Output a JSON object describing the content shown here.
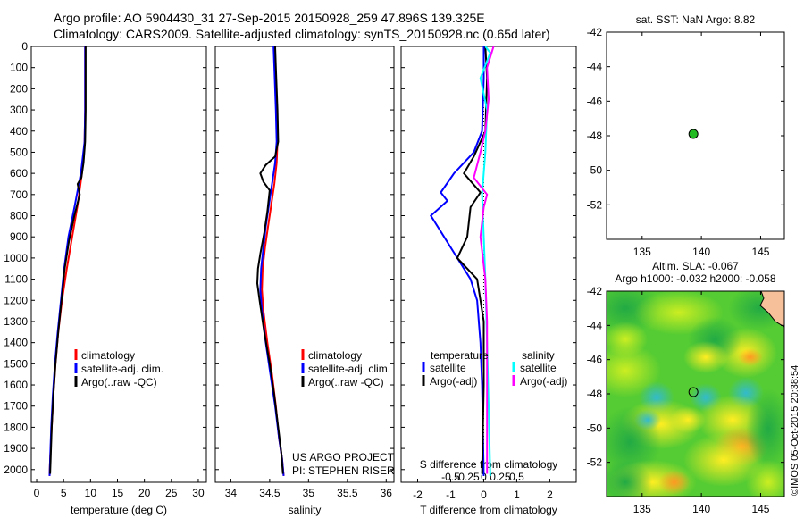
{
  "header": {
    "line1": "Argo profile: AO 5904430_31 27-Sep-2015 20150928_259 47.896S 139.325E",
    "line2": "Climatology: CARS2009. Satellite-adjusted climatology: synTS_20150928.nc (0.65d later)"
  },
  "stamp": "©IMOS 05-Oct-2015 20:38:54",
  "colors": {
    "climatology": "#ff0000",
    "satellite": "#0000ff",
    "argo": "#000000",
    "sal_satellite": "#00ffff",
    "sal_argo": "#ff00ff",
    "float_marker": "#22bb22",
    "land": "#f5c09a"
  },
  "chart_data": [
    {
      "id": "temperature",
      "type": "line",
      "xlabel": "temperature (deg C)",
      "ylabel": "",
      "xlim": [
        -1,
        31.5
      ],
      "ylim": [
        2060,
        0
      ],
      "xticks": [
        0,
        5,
        10,
        15,
        20,
        25,
        30
      ],
      "xtick_labels": [
        "0",
        "5",
        "10",
        "15",
        "20",
        "25",
        "30"
      ],
      "yticks": [
        0,
        100,
        200,
        300,
        400,
        500,
        600,
        700,
        800,
        900,
        1000,
        1100,
        1200,
        1300,
        1400,
        1500,
        1600,
        1700,
        1800,
        1900,
        2000
      ],
      "legend": {
        "position": "lower-center",
        "entries": [
          "climatology",
          "satellite-adj. clim.",
          "Argo(..raw -QC)"
        ]
      },
      "series": [
        {
          "name": "climatology",
          "color": "red",
          "points": [
            [
              9.0,
              0
            ],
            [
              9.0,
              100
            ],
            [
              9.0,
              300
            ],
            [
              8.9,
              450
            ],
            [
              8.4,
              600
            ],
            [
              7.6,
              750
            ],
            [
              6.6,
              900
            ],
            [
              5.6,
              1050
            ],
            [
              4.7,
              1200
            ],
            [
              4.0,
              1350
            ],
            [
              3.5,
              1500
            ],
            [
              3.1,
              1650
            ],
            [
              2.8,
              1800
            ],
            [
              2.5,
              1950
            ],
            [
              2.4,
              2030
            ]
          ]
        },
        {
          "name": "satellite-adj. clim.",
          "color": "blue",
          "points": [
            [
              9.0,
              0
            ],
            [
              9.0,
              100
            ],
            [
              9.0,
              300
            ],
            [
              8.9,
              450
            ],
            [
              8.2,
              600
            ],
            [
              7.1,
              750
            ],
            [
              5.9,
              900
            ],
            [
              5.1,
              1050
            ],
            [
              4.5,
              1200
            ],
            [
              3.9,
              1350
            ],
            [
              3.4,
              1500
            ],
            [
              3.0,
              1650
            ],
            [
              2.7,
              1800
            ],
            [
              2.5,
              1950
            ],
            [
              2.4,
              2030
            ]
          ]
        },
        {
          "name": "Argo(..raw -QC)",
          "color": "black",
          "points": [
            [
              9.1,
              0
            ],
            [
              9.1,
              100
            ],
            [
              9.1,
              300
            ],
            [
              9.0,
              450
            ],
            [
              8.7,
              550
            ],
            [
              8.3,
              620
            ],
            [
              7.6,
              650
            ],
            [
              8.0,
              700
            ],
            [
              7.0,
              800
            ],
            [
              6.0,
              920
            ],
            [
              5.2,
              1050
            ],
            [
              4.6,
              1200
            ],
            [
              4.0,
              1350
            ],
            [
              3.5,
              1500
            ],
            [
              3.1,
              1650
            ],
            [
              2.8,
              1800
            ],
            [
              2.6,
              1950
            ],
            [
              2.5,
              2020
            ]
          ]
        }
      ]
    },
    {
      "id": "salinity",
      "type": "line",
      "xlabel": "salinity",
      "ylabel": "",
      "xlim": [
        33.8,
        36.1
      ],
      "ylim": [
        2060,
        0
      ],
      "xticks": [
        34,
        34.5,
        35,
        35.5,
        36
      ],
      "xtick_labels": [
        "34",
        "34.5",
        "35",
        "35.5",
        "36"
      ],
      "legend": {
        "position": "lower-right",
        "entries": [
          "climatology",
          "satellite-adj. clim.",
          "Argo(..raw -QC)"
        ]
      },
      "annotation": [
        "US ARGO PROJECT",
        "PI: STEPHEN RISER"
      ],
      "series": [
        {
          "name": "climatology",
          "color": "red",
          "points": [
            [
              34.56,
              0
            ],
            [
              34.57,
              100
            ],
            [
              34.59,
              300
            ],
            [
              34.6,
              450
            ],
            [
              34.59,
              550
            ],
            [
              34.56,
              650
            ],
            [
              34.52,
              750
            ],
            [
              34.48,
              850
            ],
            [
              34.44,
              950
            ],
            [
              34.41,
              1050
            ],
            [
              34.4,
              1150
            ],
            [
              34.42,
              1250
            ],
            [
              34.47,
              1400
            ],
            [
              34.53,
              1550
            ],
            [
              34.58,
              1700
            ],
            [
              34.62,
              1850
            ],
            [
              34.66,
              1950
            ],
            [
              34.68,
              2030
            ]
          ]
        },
        {
          "name": "satellite-adj. clim.",
          "color": "blue",
          "points": [
            [
              34.55,
              0
            ],
            [
              34.56,
              100
            ],
            [
              34.58,
              300
            ],
            [
              34.59,
              450
            ],
            [
              34.57,
              550
            ],
            [
              34.53,
              650
            ],
            [
              34.49,
              750
            ],
            [
              34.45,
              850
            ],
            [
              34.42,
              950
            ],
            [
              34.39,
              1050
            ],
            [
              34.38,
              1150
            ],
            [
              34.4,
              1250
            ],
            [
              34.45,
              1400
            ],
            [
              34.51,
              1550
            ],
            [
              34.57,
              1700
            ],
            [
              34.62,
              1850
            ],
            [
              34.66,
              1950
            ],
            [
              34.68,
              2030
            ]
          ]
        },
        {
          "name": "Argo(..raw -QC)",
          "color": "black",
          "points": [
            [
              34.57,
              0
            ],
            [
              34.58,
              100
            ],
            [
              34.6,
              300
            ],
            [
              34.61,
              450
            ],
            [
              34.57,
              520
            ],
            [
              34.45,
              560
            ],
            [
              34.38,
              600
            ],
            [
              34.42,
              640
            ],
            [
              34.5,
              680
            ],
            [
              34.47,
              780
            ],
            [
              34.43,
              880
            ],
            [
              34.38,
              980
            ],
            [
              34.35,
              1050
            ],
            [
              34.34,
              1120
            ],
            [
              34.37,
              1200
            ],
            [
              34.43,
              1350
            ],
            [
              34.5,
              1500
            ],
            [
              34.56,
              1650
            ],
            [
              34.61,
              1800
            ],
            [
              34.65,
              1920
            ],
            [
              34.67,
              2020
            ]
          ]
        }
      ]
    },
    {
      "id": "difference",
      "type": "line",
      "xlabel": "T difference from climatology",
      "xlabel_top": "S difference from climatology",
      "ylabel": "",
      "xlim": [
        -2.5,
        2.8
      ],
      "ylim": [
        2060,
        0
      ],
      "xticks": [
        -2,
        -1,
        0,
        1,
        2
      ],
      "xtick_labels": [
        "-2",
        "-1",
        "0",
        "1",
        "2"
      ],
      "s_ticks": [
        -0.5,
        -0.25,
        0,
        0.25,
        0.5
      ],
      "s_tick_labels": [
        "-0.5",
        "-0.25",
        "0",
        "0.25",
        "0.5"
      ],
      "legend": {
        "position": "lower-center",
        "entries": [
          "temperature",
          "satellite",
          "Argo(-adj)",
          "salinity",
          "satellite",
          "Argo(-adj)"
        ]
      },
      "series": [
        {
          "name": "satellite",
          "color": "blue",
          "points": [
            [
              0.0,
              0
            ],
            [
              0.0,
              150
            ],
            [
              -0.05,
              400
            ],
            [
              -0.3,
              500
            ],
            [
              -0.9,
              600
            ],
            [
              -1.3,
              690
            ],
            [
              -1.1,
              730
            ],
            [
              -1.6,
              800
            ],
            [
              -1.2,
              900
            ],
            [
              -0.8,
              1000
            ],
            [
              -0.4,
              1100
            ],
            [
              -0.2,
              1200
            ],
            [
              -0.1,
              1400
            ],
            [
              -0.05,
              1600
            ],
            [
              0.0,
              2030
            ]
          ]
        },
        {
          "name": "Argo(-adj)",
          "color": "black",
          "points": [
            [
              0.05,
              0
            ],
            [
              0.1,
              150
            ],
            [
              0.05,
              400
            ],
            [
              -0.3,
              520
            ],
            [
              -0.6,
              600
            ],
            [
              -0.1,
              690
            ],
            [
              -0.4,
              760
            ],
            [
              -0.5,
              900
            ],
            [
              -0.8,
              1000
            ],
            [
              -0.2,
              1100
            ],
            [
              0.0,
              1300
            ],
            [
              0.0,
              1600
            ],
            [
              -0.05,
              2020
            ]
          ]
        },
        {
          "name": "satellite",
          "color": "cyan",
          "points": [
            [
              0.05,
              0
            ],
            [
              0.2,
              30
            ],
            [
              -0.1,
              150
            ],
            [
              0.1,
              300
            ],
            [
              0.05,
              500
            ],
            [
              -0.05,
              700
            ],
            [
              0.0,
              900
            ],
            [
              0.05,
              1100
            ],
            [
              0.1,
              1400
            ],
            [
              0.15,
              1700
            ],
            [
              0.2,
              2030
            ]
          ]
        },
        {
          "name": "Argo(-adj)",
          "color": "magenta",
          "points": [
            [
              0.3,
              0
            ],
            [
              0.1,
              100
            ],
            [
              0.15,
              250
            ],
            [
              0.05,
              400
            ],
            [
              -0.1,
              500
            ],
            [
              -0.3,
              620
            ],
            [
              0.1,
              700
            ],
            [
              0.0,
              760
            ],
            [
              -0.1,
              900
            ],
            [
              0.05,
              1100
            ],
            [
              0.1,
              1300
            ],
            [
              0.1,
              1600
            ],
            [
              0.1,
              2020
            ]
          ]
        }
      ]
    },
    {
      "id": "sst-map",
      "type": "scatter",
      "title": "sat. SST: NaN Argo: 8.82",
      "xlim": [
        132,
        147
      ],
      "ylim": [
        -54,
        -42
      ],
      "xticks": [
        135,
        140,
        145
      ],
      "yticks": [
        -42,
        -44,
        -46,
        -48,
        -50,
        -52
      ],
      "ytick_labels": [
        "-42",
        "-44",
        "-46",
        "-48",
        "-50",
        "-52"
      ],
      "points": [
        {
          "x": 139.325,
          "y": -47.896
        }
      ]
    },
    {
      "id": "sla-map",
      "type": "heatmap",
      "title": "Altim. SLA: -0.067",
      "subtitle": "Argo h1000: -0.032 h2000: -0.058",
      "xlim": [
        132,
        147
      ],
      "ylim": [
        -54,
        -42
      ],
      "xticks": [
        135,
        140,
        145
      ],
      "yticks": [
        -42,
        -44,
        -46,
        -48,
        -50,
        -52
      ],
      "ytick_labels": [
        "-42",
        "-44",
        "-46",
        "-48",
        "-50",
        "-52"
      ],
      "points": [
        {
          "x": 139.325,
          "y": -47.896
        }
      ]
    }
  ]
}
